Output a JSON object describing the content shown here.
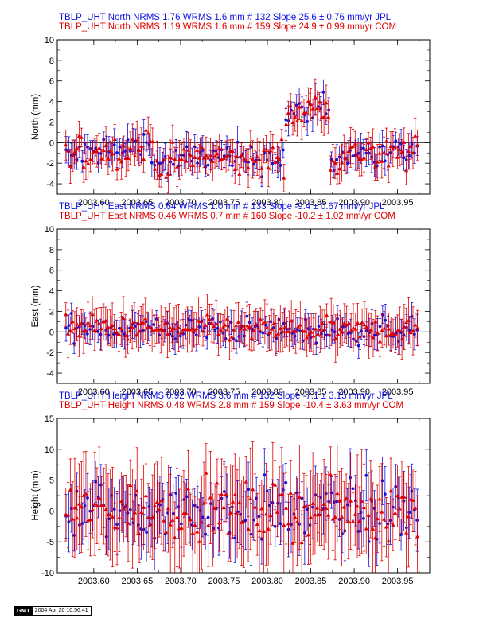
{
  "colors": {
    "jpl": "#1010e0",
    "com": "#e00000",
    "axis": "#000000"
  },
  "footer": {
    "logo": "GMT",
    "timestamp": "2004 Apr 20 10:56:41"
  },
  "chart_data": [
    {
      "type": "scatter",
      "component": "north",
      "ylabel": "North (mm)",
      "ylim": [
        -5,
        10
      ],
      "yticks": [
        -4,
        -2,
        0,
        2,
        4,
        6,
        8,
        10
      ],
      "xlim": [
        2003.558,
        2003.987
      ],
      "xticks": [
        "2003.60",
        "2003.65",
        "2003.70",
        "2003.75",
        "2003.80",
        "2003.85",
        "2003.90",
        "2003.95"
      ],
      "series": [
        {
          "title": "TBLP_UHT North NRMS 1.76 WRMS  1.6 mm # 132 Slope   25.6 ±  0.76 mm/yr JPL",
          "color": "#1010e0",
          "marker": "circle",
          "n": 132,
          "segments": [
            [
              -1,
              1.0
            ],
            [
              -0.5,
              1.2
            ],
            [
              -1.8,
              0.8
            ],
            [
              -1.5,
              -0.5
            ],
            [
              -1.5,
              0.6
            ],
            [
              3.2,
              1.8
            ],
            [
              -1.2,
              1.4
            ],
            [
              -1.2,
              1.0
            ]
          ],
          "err": 1.2,
          "noise": 1.1
        },
        {
          "title": "TBLP_UHT North NRMS 1.19 WRMS  1.6 mm # 159 Slope   24.9 ±  0.99 mm/yr COM",
          "color": "#e00000",
          "marker": "triangle",
          "n": 159,
          "segments": [
            [
              -1,
              1.0
            ],
            [
              -0.5,
              1.2
            ],
            [
              -1.8,
              0.8
            ],
            [
              -1.5,
              -0.5
            ],
            [
              -1.5,
              0.6
            ],
            [
              3.2,
              1.8
            ],
            [
              -1.2,
              1.4
            ],
            [
              -1.2,
              1.0
            ]
          ],
          "err": 1.5,
          "noise": 1.1
        }
      ]
    },
    {
      "type": "scatter",
      "component": "east",
      "ylabel": "East (mm)",
      "ylim": [
        -5,
        10
      ],
      "yticks": [
        -4,
        -2,
        0,
        2,
        4,
        6,
        8,
        10
      ],
      "xlim": [
        2003.558,
        2003.987
      ],
      "xticks": [
        "2003.60",
        "2003.65",
        "2003.70",
        "2003.75",
        "2003.80",
        "2003.85",
        "2003.90",
        "2003.95"
      ],
      "series": [
        {
          "title": "TBLP_UHT East NRMS 0.64 WRMS  1.0 mm # 133 Slope   -9.4 ±  0.67 mm/yr JPL",
          "color": "#1010e0",
          "marker": "circle",
          "n": 133,
          "segments": [
            [
              0.5,
              0
            ],
            [
              0.3,
              0
            ],
            [
              0.2,
              0
            ],
            [
              0.3,
              0
            ],
            [
              0.2,
              0
            ],
            [
              0.1,
              0
            ],
            [
              0.1,
              0
            ],
            [
              0.2,
              0
            ]
          ],
          "err": 1.2,
          "noise": 0.9
        },
        {
          "title": "TBLP_UHT East NRMS 0.46 WRMS  0.7 mm # 160 Slope  -10.2 ±  1.02 mm/yr COM",
          "color": "#e00000",
          "marker": "triangle",
          "n": 160,
          "segments": [
            [
              0.5,
              0
            ],
            [
              0.3,
              0
            ],
            [
              0.2,
              0
            ],
            [
              0.3,
              0
            ],
            [
              0.2,
              0
            ],
            [
              0.1,
              0
            ],
            [
              0.1,
              0
            ],
            [
              0.2,
              0
            ]
          ],
          "err": 1.8,
          "noise": 0.8
        }
      ]
    },
    {
      "type": "scatter",
      "component": "height",
      "ylabel": "Height (mm)",
      "ylim": [
        -10,
        15
      ],
      "yticks": [
        -10,
        -5,
        0,
        5,
        10,
        15
      ],
      "xlim": [
        2003.558,
        2003.987
      ],
      "xticks": [
        "2003.60",
        "2003.65",
        "2003.70",
        "2003.75",
        "2003.80",
        "2003.85",
        "2003.90",
        "2003.95"
      ],
      "series": [
        {
          "title": "TBLP_UHT Height NRMS 0.92 WRMS  3.6 mm # 132 Slope   -7.1 ±  3.15 mm/yr JPL",
          "color": "#1010e0",
          "marker": "circle",
          "n": 132,
          "segments": [
            [
              0,
              0
            ],
            [
              0,
              0
            ],
            [
              0,
              0
            ],
            [
              0,
              0
            ],
            [
              0,
              0
            ],
            [
              0,
              0
            ],
            [
              0,
              0
            ],
            [
              0,
              0
            ]
          ],
          "err": 4.0,
          "noise": 3.6
        },
        {
          "title": "TBLP_UHT Height NRMS 0.48 WRMS  2.8 mm # 159 Slope  -10.4 ±  3.63 mm/yr COM",
          "color": "#e00000",
          "marker": "triangle",
          "n": 159,
          "segments": [
            [
              0,
              0
            ],
            [
              0,
              0
            ],
            [
              0,
              0
            ],
            [
              0,
              0
            ],
            [
              0,
              0
            ],
            [
              0,
              0
            ],
            [
              0,
              0
            ],
            [
              0,
              0
            ]
          ],
          "err": 6.5,
          "noise": 3.0
        }
      ]
    }
  ]
}
